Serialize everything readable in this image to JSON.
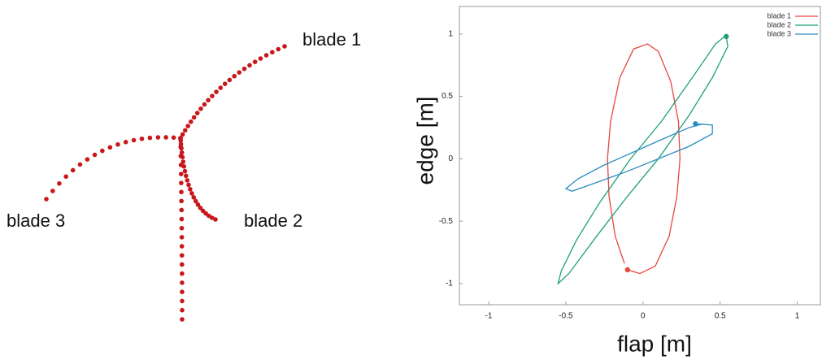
{
  "diagram": {
    "labels": [
      "blade 1",
      "blade 2",
      "blade 3"
    ]
  },
  "chart_data": {
    "type": "line",
    "xlabel": "flap [m]",
    "ylabel": "edge [m]",
    "xlim": [
      -1.19,
      1.15
    ],
    "ylim": [
      -1.17,
      1.22
    ],
    "xticks": [
      -1,
      -0.5,
      0,
      0.5,
      1
    ],
    "yticks": [
      -1,
      -0.5,
      0,
      0.5,
      1
    ],
    "legend": "upper right",
    "series": [
      {
        "name": "blade 1",
        "color": "#e8473c",
        "x": [
          -0.1,
          -0.02,
          0.08,
          0.17,
          0.22,
          0.24,
          0.23,
          0.18,
          0.1,
          0.03,
          -0.06,
          -0.15,
          -0.21,
          -0.23,
          -0.22,
          -0.18,
          -0.12
        ],
        "values": [
          -0.89,
          -0.92,
          -0.86,
          -0.62,
          -0.3,
          0.0,
          0.3,
          0.62,
          0.86,
          0.92,
          0.88,
          0.65,
          0.3,
          0.0,
          -0.3,
          -0.62,
          -0.84
        ]
      },
      {
        "name": "blade 2",
        "color": "#1fa07a",
        "x": [
          0.54,
          0.55,
          0.45,
          0.3,
          0.1,
          -0.1,
          -0.3,
          -0.48,
          -0.55,
          -0.53,
          -0.43,
          -0.28,
          -0.08,
          0.12,
          0.32,
          0.47,
          0.53
        ],
        "values": [
          0.98,
          0.9,
          0.65,
          0.35,
          0.0,
          -0.3,
          -0.62,
          -0.92,
          -1.0,
          -0.9,
          -0.65,
          -0.35,
          0.0,
          0.3,
          0.65,
          0.92,
          0.98
        ]
      },
      {
        "name": "blade 3",
        "color": "#2a8cc0",
        "x": [
          0.34,
          0.45,
          0.45,
          0.3,
          0.1,
          -0.1,
          -0.3,
          -0.46,
          -0.5,
          -0.42,
          -0.25,
          -0.05,
          0.15,
          0.3,
          0.39
        ],
        "values": [
          0.28,
          0.27,
          0.2,
          0.1,
          0.0,
          -0.1,
          -0.19,
          -0.26,
          -0.24,
          -0.16,
          -0.05,
          0.06,
          0.17,
          0.25,
          0.28
        ]
      }
    ]
  }
}
